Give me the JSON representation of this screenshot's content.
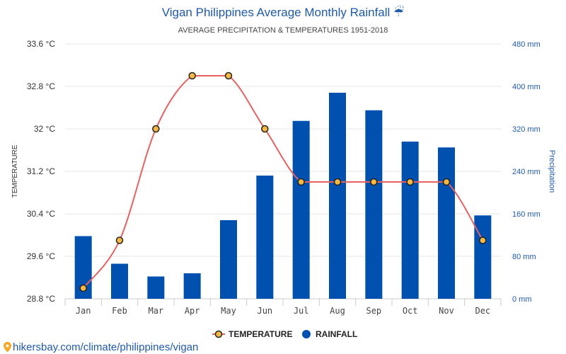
{
  "colors": {
    "temperature_line": "#e86060",
    "temperature_marker_fill": "#f5b942",
    "temperature_marker_stroke": "#222222",
    "rainfall_bar": "#0050b0",
    "title": "#1f5aa8",
    "grid": "#e6e6e6"
  },
  "chart_data": {
    "type": "bar",
    "title": "Vigan Philippines Average Monthly Rainfall ☔",
    "subtitle": "AVERAGE PRECIPITATION & TEMPERATURES 1951-2018",
    "categories": [
      "Jan",
      "Feb",
      "Mar",
      "Apr",
      "May",
      "Jun",
      "Jul",
      "Aug",
      "Sep",
      "Oct",
      "Nov",
      "Dec"
    ],
    "series": [
      {
        "name": "TEMPERATURE",
        "type": "line",
        "axis": "left",
        "values": [
          29.0,
          29.9,
          32.0,
          33.0,
          33.0,
          32.0,
          31.0,
          31.0,
          31.0,
          31.0,
          31.0,
          29.9
        ]
      },
      {
        "name": "RAINFALL",
        "type": "bar",
        "axis": "right",
        "values": [
          118,
          66,
          42,
          48,
          148,
          232,
          335,
          388,
          355,
          296,
          285,
          157
        ]
      }
    ],
    "y_left": {
      "label": "TEMPERATURE",
      "range": [
        28.8,
        33.6
      ],
      "ticks": [
        28.8,
        29.6,
        30.4,
        31.2,
        32,
        32.8,
        33.6
      ],
      "tick_labels": [
        "28.8 °C",
        "29.6 °C",
        "30.4 °C",
        "31.2 °C",
        "32 °C",
        "32.8 °C",
        "33.6 °C"
      ]
    },
    "y_right": {
      "label": "Precipitation",
      "range": [
        0,
        480
      ],
      "ticks": [
        0,
        80,
        160,
        240,
        320,
        400,
        480
      ],
      "tick_labels": [
        "0 mm",
        "80 mm",
        "160 mm",
        "240 mm",
        "320 mm",
        "400 mm",
        "480 mm"
      ]
    },
    "grid": true,
    "legend_position": "bottom"
  },
  "source": {
    "text": "hikersbay.com/climate/philippines/vigan",
    "icon": "map-pin-icon"
  }
}
